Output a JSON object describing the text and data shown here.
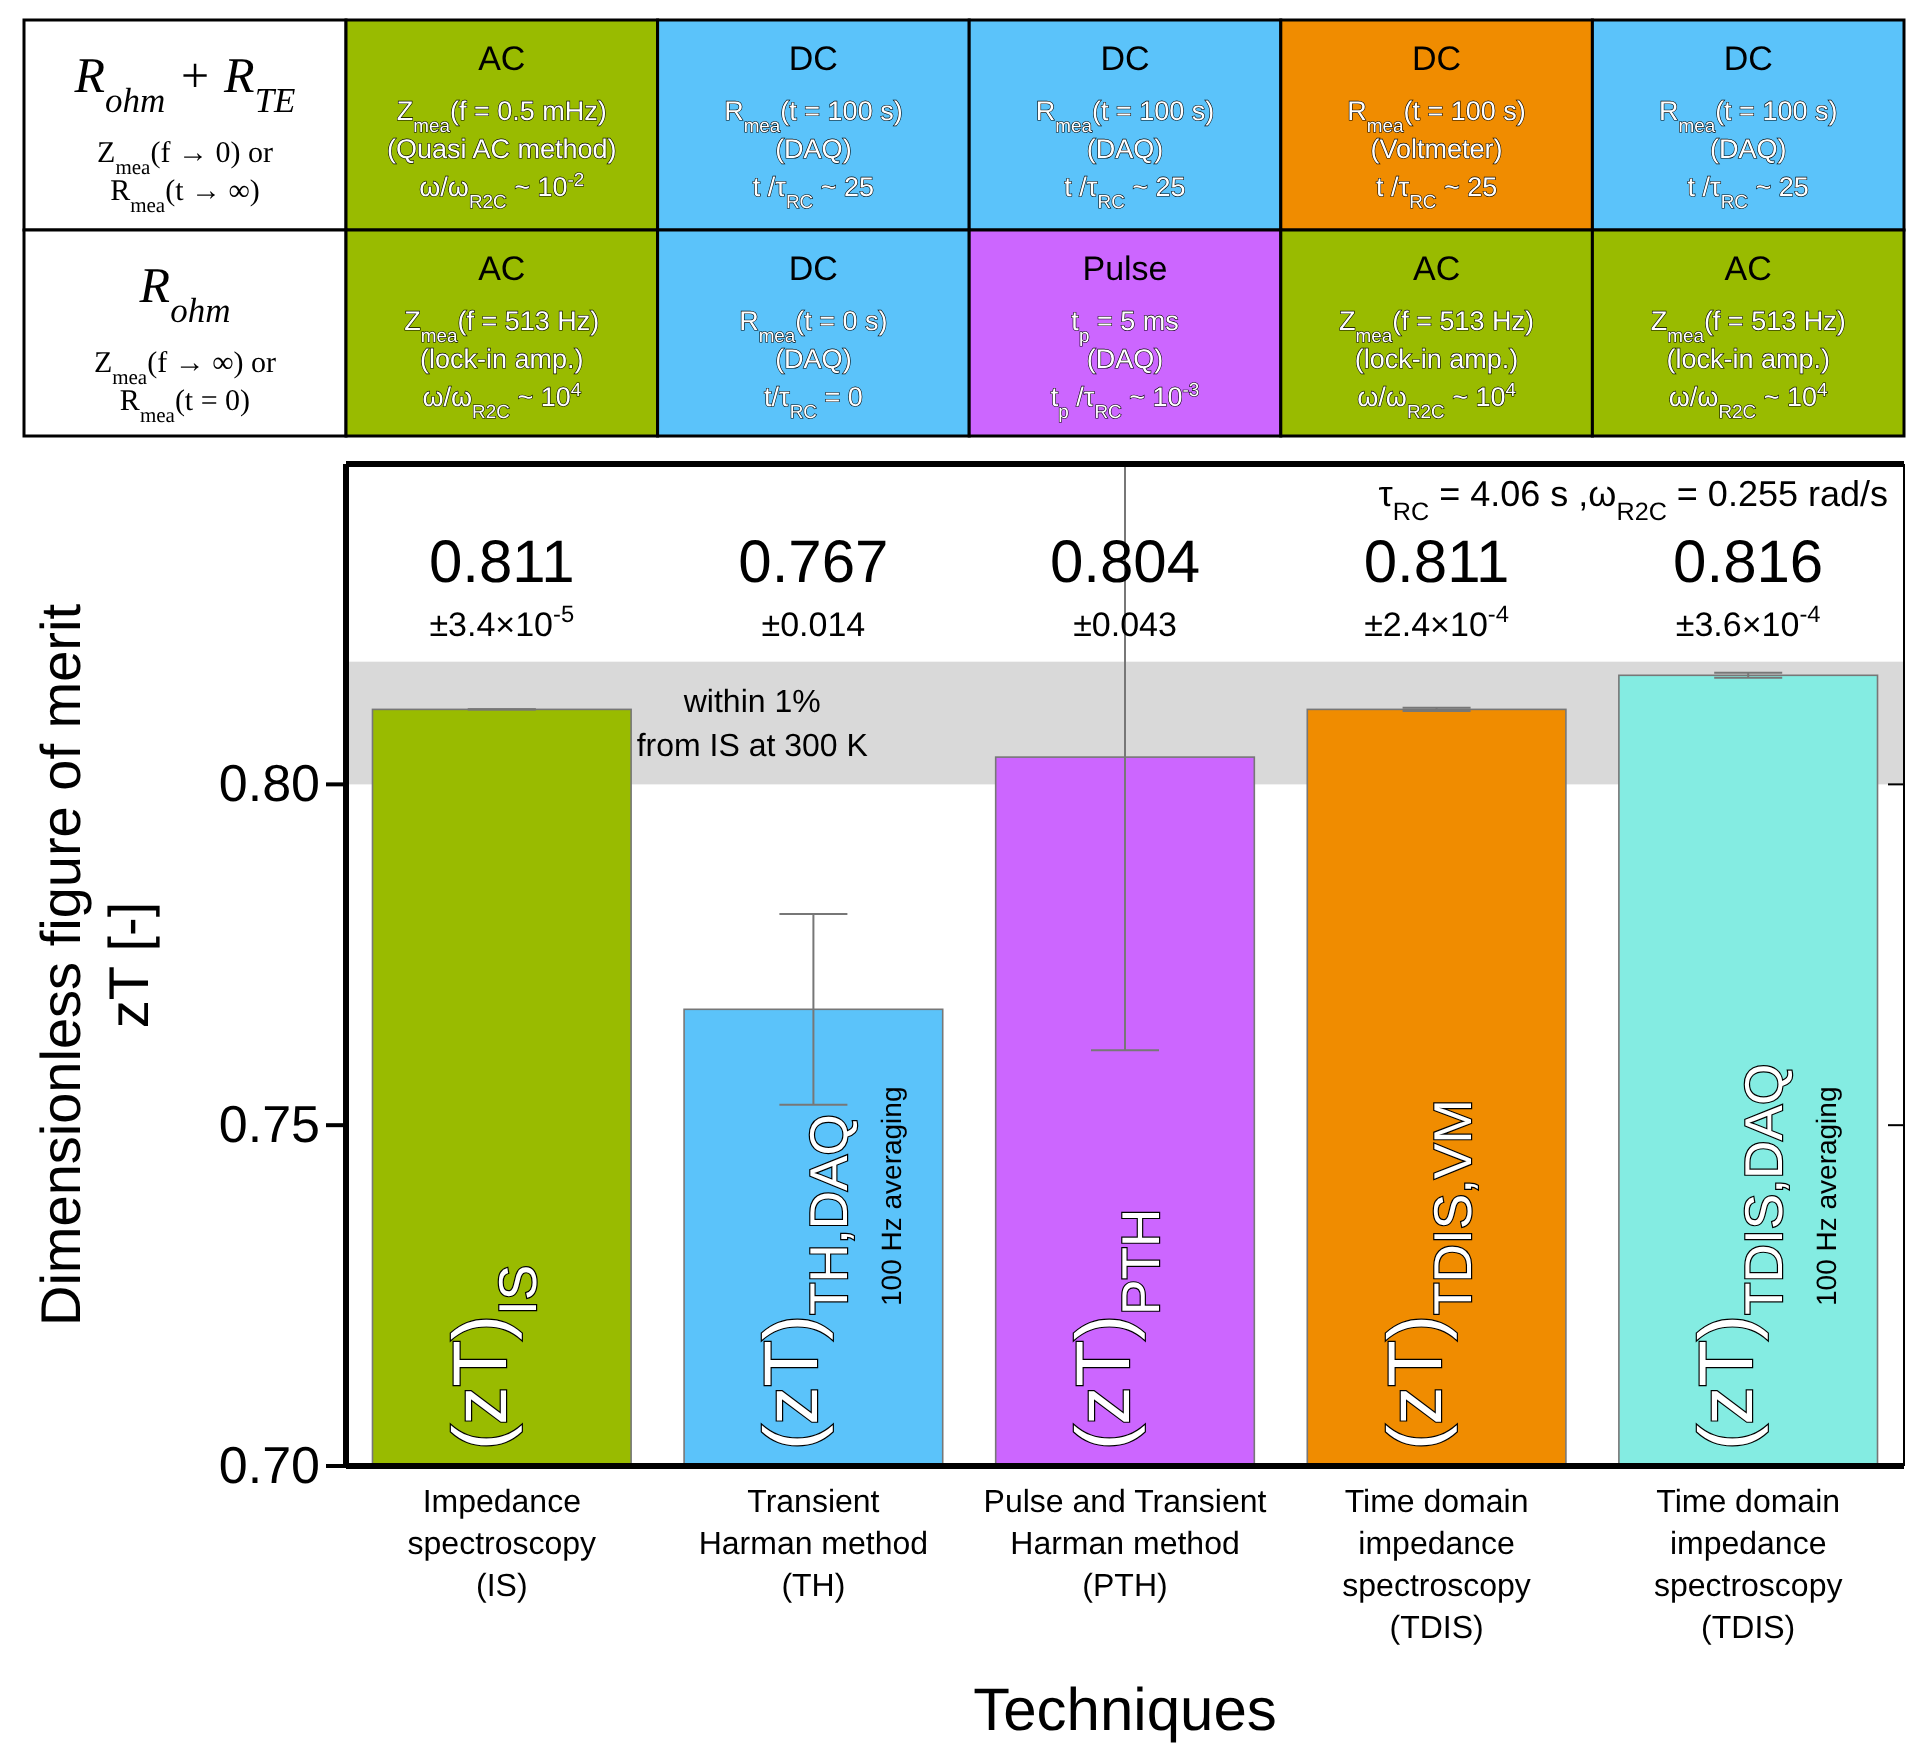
{
  "chart_data": {
    "type": "bar",
    "xlabel": "Techniques",
    "ylabel": "Dimensionless figure of merit\nzT [-]",
    "categories": [
      "Impedance\nspectroscopy\n(IS)",
      "Transient\nHarman method\n(TH)",
      "Pulse and Transient\nHarman method\n(PTH)",
      "Time domain\nimpedance\nspectroscopy\n(TDIS)",
      "Time domain\nimpedance\nspectroscopy\n(TDIS)"
    ],
    "values": [
      0.811,
      0.767,
      0.804,
      0.811,
      0.816
    ],
    "errors": [
      3.4e-05,
      0.014,
      0.043,
      0.00024,
      0.00036
    ],
    "colors": [
      "#99bb00",
      "#5bc3fa",
      "#cc66ff",
      "#f08c00",
      "#84ece2"
    ],
    "ylim": [
      0.7,
      0.847
    ],
    "yticks": [
      {
        "value": 0.7,
        "label": "0.70"
      },
      {
        "value": 0.75,
        "label": "0.75"
      },
      {
        "value": 0.8,
        "label": "0.80"
      }
    ],
    "bands": [
      {
        "axis": "y",
        "from": 0.8,
        "to": 0.818,
        "label": "within 1%\nfrom IS at 300 K",
        "color": "#d9d9d9"
      }
    ],
    "annotations": [
      "τ$_{RC}$ = 4.06 s ,ω$_{R2C}$ = 0.255 rad/s",
      "±3.4×10$^{-5}$",
      "±0.014",
      "±0.043",
      "±2.4×10$^{-4}$",
      "±3.6×10$^{-4}$",
      "(zT)$_{IS}$",
      "(zT)$_{TH,DAQ}$",
      "(zT)$_{PTH}$",
      "(zT)$_{TDIS,VM}$",
      "(zT)$_{TDIS,DAQ}$",
      "100 Hz averaging",
      "100 Hz averaging",
      "R$_{ohm}$ + R$_{TE}$",
      "Z$_{mea}$(f → 0) or",
      "R$_{mea}$(t → ∞)",
      "AC",
      "Z$_{mea}$(f = 0.5 mHz)",
      "(Quasi AC method)",
      "ω/ω$_{R2C}$ ~ 10$^{-2}$",
      "DC",
      "R$_{mea}$(t = 100 s)",
      "(DAQ)",
      "t /τ$_{RC}$ ~ 25",
      "DC",
      "R$_{mea}$(t = 100 s)",
      "(DAQ)",
      "t /τ$_{RC}$ ~ 25",
      "DC",
      "R$_{mea}$(t = 100 s)",
      "(Voltmeter)",
      "t /τ$_{RC}$ ~ 25",
      "DC",
      "R$_{mea}$(t = 100 s)",
      "(DAQ)",
      "t /τ$_{RC}$ ~ 25",
      "R$_{ohm}$",
      "Z$_{mea}$(f → ∞) or",
      "R$_{mea}$(t = 0)",
      "AC",
      "Z$_{mea}$(f = 513 Hz)",
      "(lock-in amp.)",
      "ω/ω$_{R2C}$ ~ 10$^{4}$",
      "DC",
      "R$_{mea}$(t = 0 s)",
      "(DAQ)",
      "t/τ$_{RC}$ = 0",
      "Pulse",
      "t$_{p}$ =  5 ms",
      "(DAQ)",
      "t$_{p}$ /τ$_{RC}$ ~ 10$^{-3}$",
      "AC",
      "Z$_{mea}$(f = 513 Hz)",
      "(lock-in amp.)",
      "ω/ω$_{R2C}$ ~ 10$^{4}$",
      "AC",
      "Z$_{mea}$(f = 513 Hz)",
      "(lock-in amp.)",
      "ω/ω$_{R2C}$ ~ 10$^{4}$",
      "0.811",
      "0.767",
      "0.804",
      "0.811",
      "0.816"
    ]
  }
}
